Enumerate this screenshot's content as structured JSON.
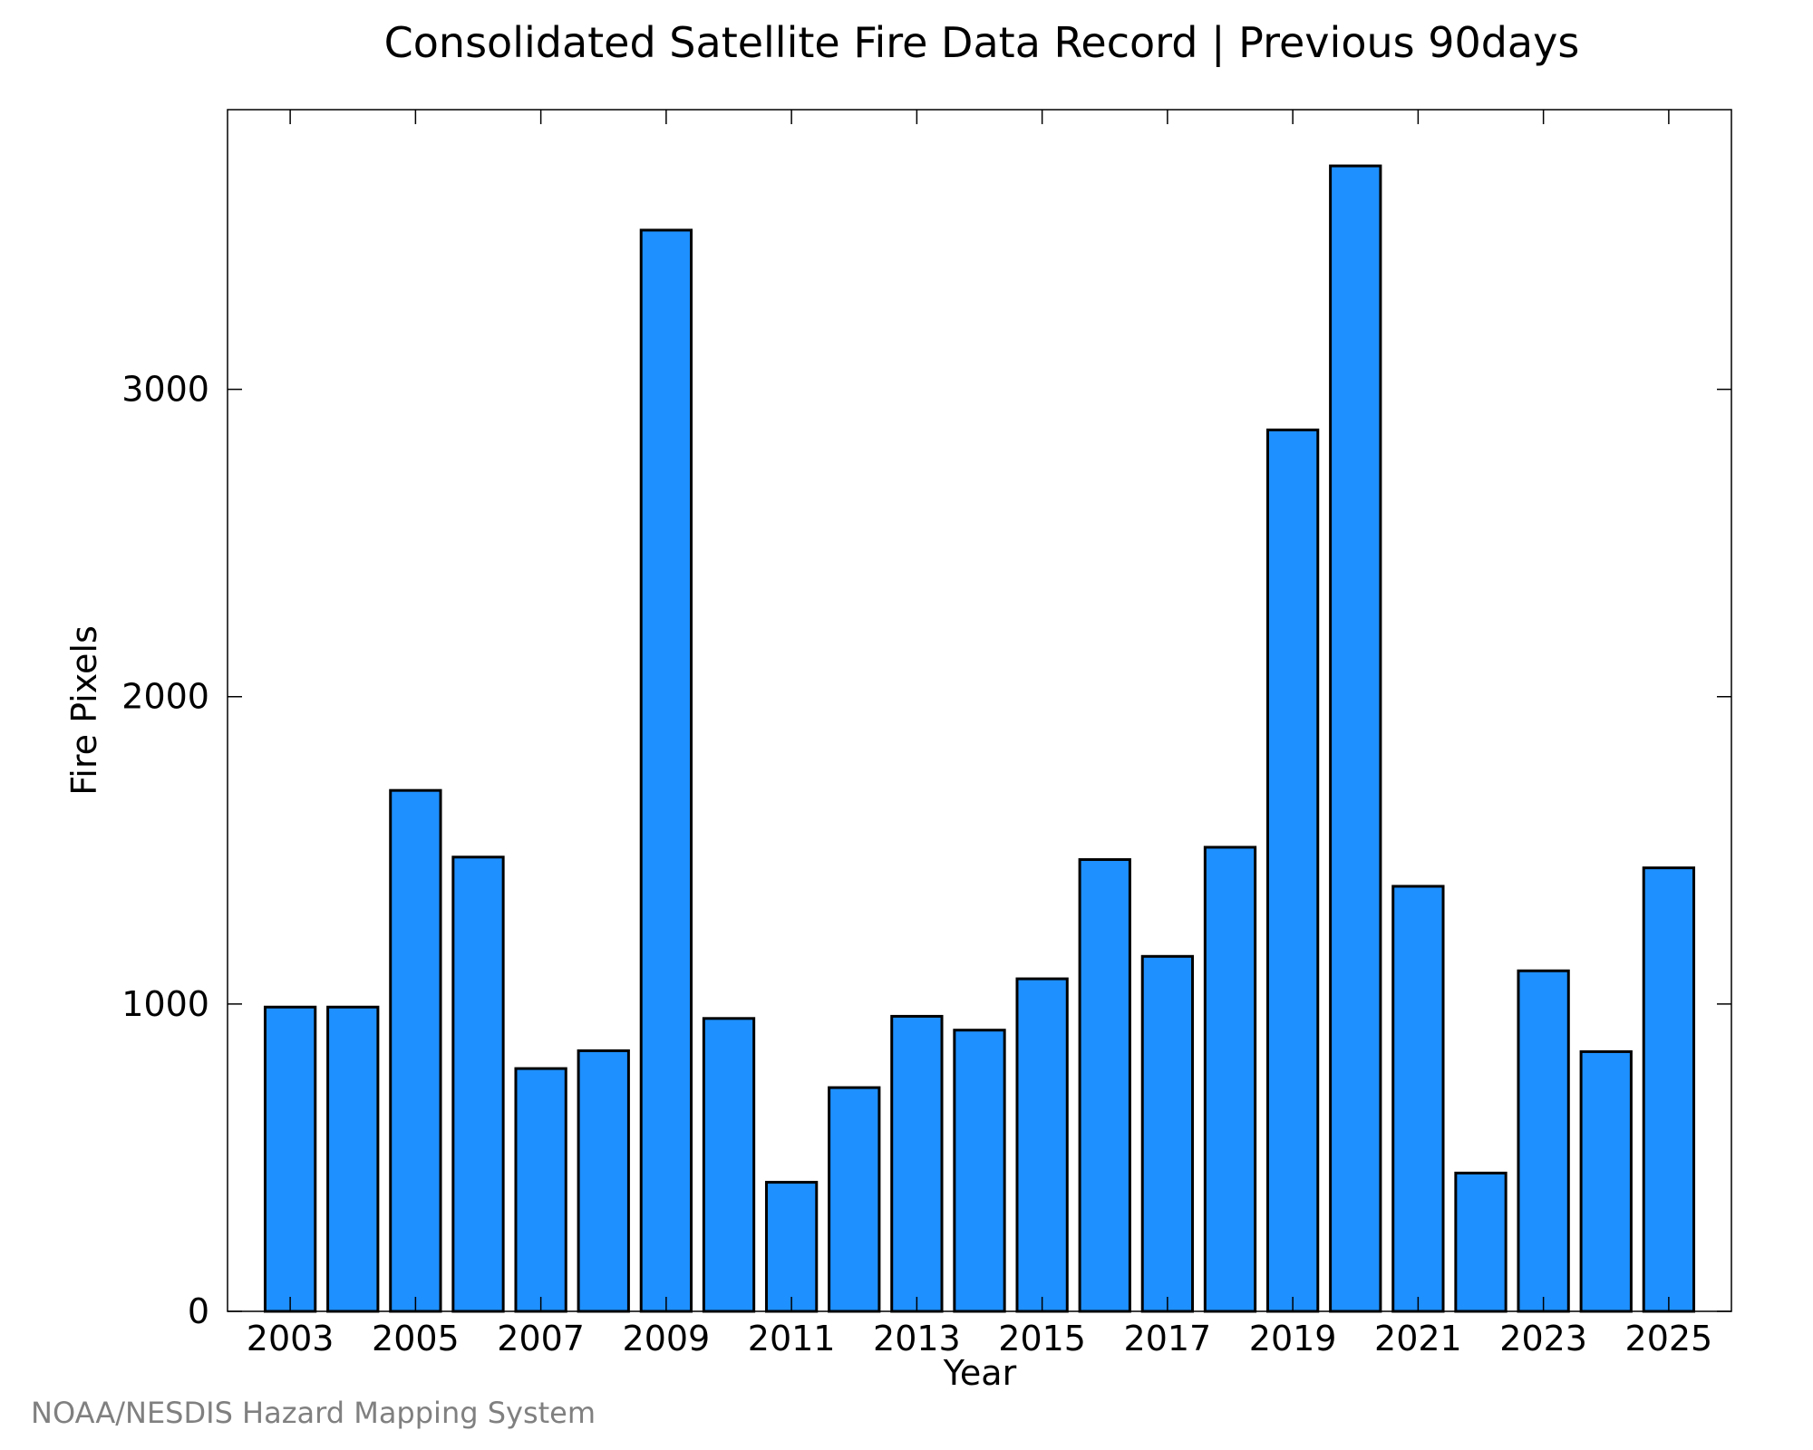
{
  "chart_data": {
    "type": "bar",
    "title": "Consolidated Satellite Fire Data Record | Previous 90days",
    "xlabel": "Year",
    "ylabel": "Fire Pixels",
    "credit": "NOAA/NESDIS Hazard Mapping System",
    "categories": [
      2003,
      2004,
      2005,
      2006,
      2007,
      2008,
      2009,
      2010,
      2011,
      2012,
      2013,
      2014,
      2015,
      2016,
      2017,
      2018,
      2019,
      2020,
      2021,
      2022,
      2023,
      2024,
      2025
    ],
    "values": [
      990,
      990,
      1695,
      1478,
      790,
      848,
      3518,
      953,
      420,
      728,
      960,
      915,
      1082,
      1470,
      1155,
      1510,
      2868,
      3727,
      1383,
      450,
      1108,
      845,
      1443
    ],
    "x_tick_labels": [
      "2003",
      "2005",
      "2007",
      "2009",
      "2011",
      "2013",
      "2015",
      "2017",
      "2019",
      "2021",
      "2023",
      "2025"
    ],
    "y_ticks": [
      0,
      1000,
      2000,
      3000
    ],
    "y_tick_labels": [
      "0",
      "1000",
      "2000",
      "3000"
    ],
    "xlim": [
      2002.0,
      2026.0
    ],
    "ylim": [
      0,
      3910
    ],
    "bar_color": "#1e90ff",
    "grid": false,
    "legend": "none"
  }
}
